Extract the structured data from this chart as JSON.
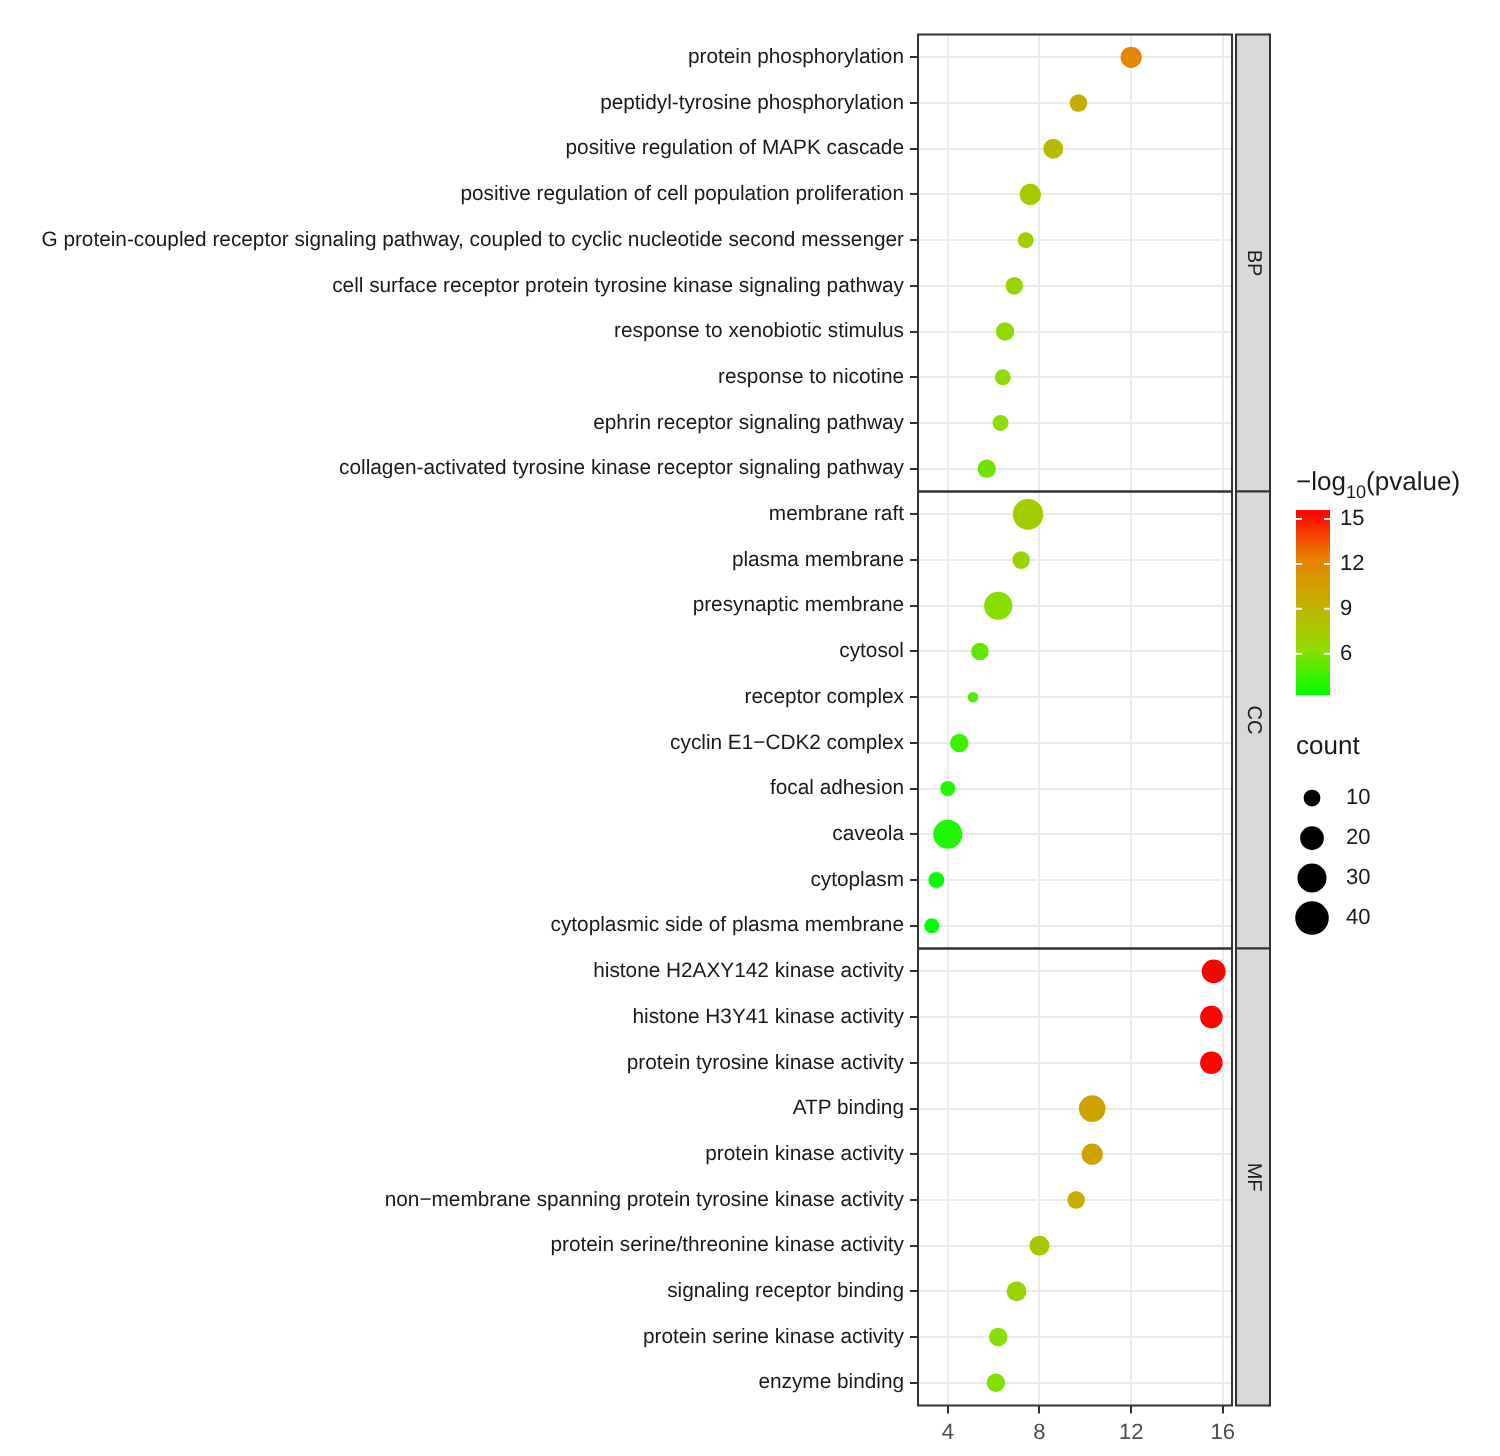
{
  "chart_data": {
    "type": "bubble",
    "orientation": "horizontal",
    "categories": [
      "protein phosphorylation",
      "peptidyl-tyrosine phosphorylation",
      "positive regulation of MAPK cascade",
      "positive regulation of cell population proliferation",
      "G protein-coupled receptor signaling pathway, coupled to cyclic nucleotide second messenger",
      "cell surface receptor protein tyrosine kinase signaling pathway",
      "response to xenobiotic stimulus",
      "response to nicotine",
      "ephrin receptor signaling pathway",
      "collagen-activated tyrosine kinase receptor signaling pathway",
      "membrane raft",
      "plasma membrane",
      "presynaptic membrane",
      "cytosol",
      "receptor complex",
      "cyclin E1−CDK2 complex",
      "focal adhesion",
      "caveola",
      "cytoplasm",
      "cytoplasmic side of plasma membrane",
      "histone H2AXY142 kinase activity",
      "histone H3Y41 kinase activity",
      "protein tyrosine kinase activity",
      "ATP binding",
      "protein kinase activity",
      "non−membrane spanning protein tyrosine kinase activity",
      "protein serine/threonine kinase activity",
      "signaling receptor binding",
      "protein serine kinase activity",
      "enzyme binding"
    ],
    "values": [
      12.0,
      9.7,
      8.6,
      7.6,
      7.4,
      6.9,
      6.5,
      6.4,
      6.3,
      5.7,
      7.5,
      7.2,
      6.2,
      5.4,
      5.1,
      4.5,
      4.0,
      4.0,
      3.5,
      3.3,
      15.6,
      15.5,
      15.5,
      10.3,
      10.3,
      9.6,
      8.0,
      7.0,
      6.2,
      6.1
    ],
    "cvalues": [
      12.0,
      9.7,
      8.6,
      7.6,
      7.4,
      6.9,
      6.5,
      6.4,
      6.3,
      5.7,
      7.5,
      7.2,
      6.2,
      5.4,
      5.1,
      4.5,
      4.0,
      4.0,
      3.5,
      3.3,
      15.6,
      15.5,
      15.5,
      10.3,
      10.3,
      9.6,
      8.0,
      7.0,
      6.2,
      6.1
    ],
    "sizes": [
      16,
      11,
      14,
      16,
      9,
      11,
      12,
      9,
      9,
      12,
      33,
      11,
      28,
      11,
      4,
      12,
      8,
      30,
      9,
      8,
      20,
      18,
      18,
      25,
      16,
      11,
      14,
      14,
      12,
      12
    ],
    "xlim": [
      2.7,
      16.4
    ],
    "xticks": [
      4,
      8,
      12,
      16
    ],
    "grid": true,
    "clabel": "−log$_{10}$(pvalue)",
    "clim": [
      3.3,
      15.6
    ],
    "cticks": [
      6,
      9,
      12,
      15
    ],
    "legend_title": "count",
    "size_legend": [
      10,
      20,
      30,
      40
    ],
    "annotations": [
      "BP",
      "CC",
      "MF"
    ]
  }
}
